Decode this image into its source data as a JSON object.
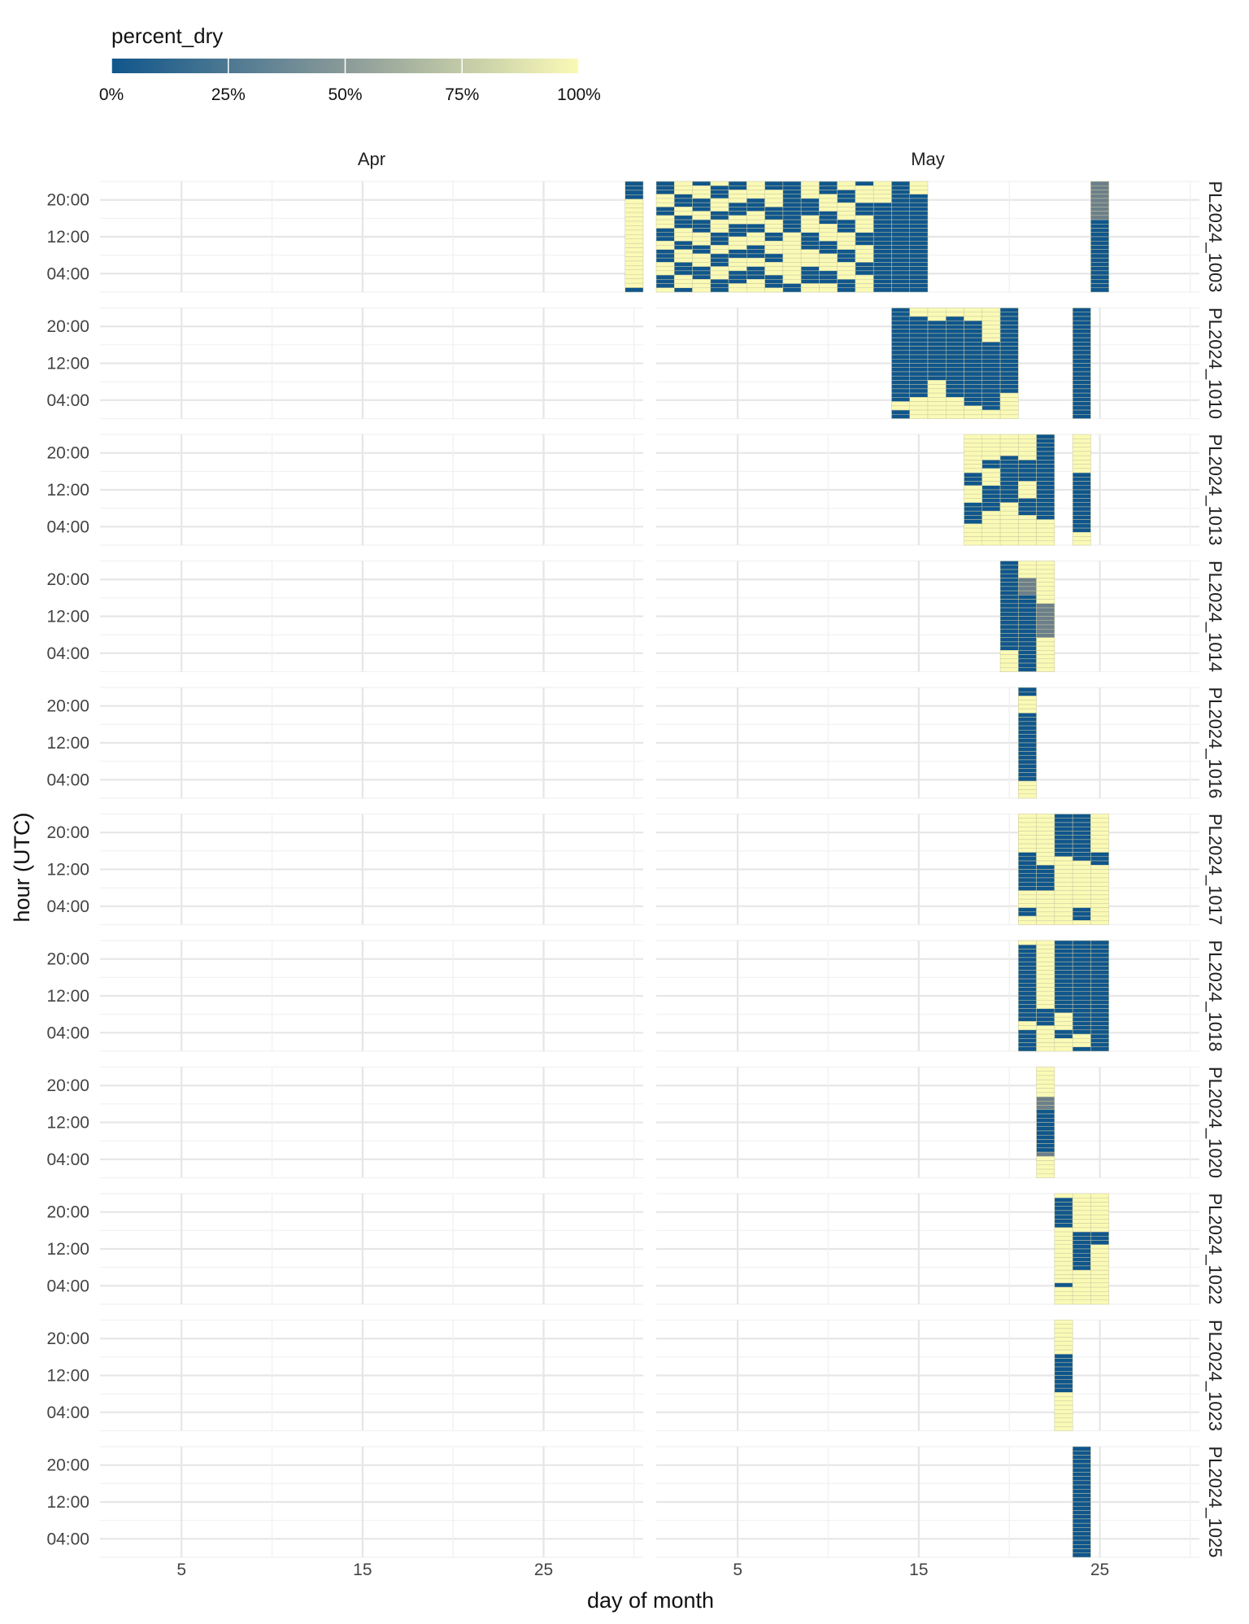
{
  "chart_data": {
    "type": "heatmap",
    "title": "",
    "xlabel": "day of month",
    "ylabel": "hour (UTC)",
    "legend": {
      "title": "percent_dry",
      "position": "top-left",
      "ticks": [
        "0%",
        "25%",
        "50%",
        "75%",
        "100%"
      ],
      "tick_values": [
        0,
        0.25,
        0.5,
        0.75,
        1
      ],
      "low_color": "#10568c",
      "mid_color": "#8a9a98",
      "high_color": "#fafab6"
    },
    "grid": true,
    "column_facets": [
      "Apr",
      "May"
    ],
    "x_ticks": [
      5,
      15,
      25
    ],
    "x_range": [
      0.5,
      30.5
    ],
    "y_ticks": [
      "20:00",
      "12:00",
      "04:00"
    ],
    "y_tick_hours": [
      20,
      12,
      4
    ],
    "y_range": [
      0,
      24
    ],
    "row_facets": [
      "PL2024_1003",
      "PL2024_1010",
      "PL2024_1013",
      "PL2024_1014",
      "PL2024_1016",
      "PL2024_1017",
      "PL2024_1018",
      "PL2024_1020",
      "PL2024_1022",
      "PL2024_1023",
      "PL2024_1025"
    ],
    "days": [
      {
        "facet": "PL2024_1003",
        "month": "Apr",
        "day": 30,
        "pattern": "1111000000000000000000001"
      },
      {
        "facet": "PL2024_1003",
        "month": "May",
        "day": 1,
        "pattern": "DDDHHHDDHHHDDDHHDDDHHHDDDH"
      },
      {
        "facet": "PL2024_1003",
        "month": "May",
        "day": 2,
        "pattern": "HHHDDDHHDDDHHHDDHHHDDDHHHD"
      },
      {
        "facet": "PL2024_1003",
        "month": "May",
        "day": 3,
        "pattern": "DHHHDDDHHDDDHHHDDHHHDDDHHH"
      },
      {
        "facet": "PL2024_1003",
        "month": "May",
        "day": 4,
        "pattern": "HDDDHHHDDHHHDDDHHDDDHHHDDD"
      },
      {
        "facet": "PL2024_1003",
        "month": "May",
        "day": 5,
        "pattern": "DDHHHDDDHHDDDHHHDDHHHDDDHH"
      },
      {
        "facet": "PL2024_1003",
        "month": "May",
        "day": 6,
        "pattern": "HHHHDDDHHHDDHHHDDDHHDDDHHH"
      },
      {
        "facet": "PL2024_1003",
        "month": "May",
        "day": 7,
        "pattern": "DDHHHHDDDHHHDDHHHDDHHHDDDH"
      },
      {
        "facet": "PL2024_1003",
        "month": "May",
        "day": 8,
        "pattern": "DDDDDDDDDDDDHHHHHHHHHHHHDD"
      },
      {
        "facet": "PL2024_1003",
        "month": "May",
        "day": 9,
        "pattern": "HHHHDDDDHHHHDDDDHHHHDDDDHH"
      },
      {
        "facet": "PL2024_1003",
        "month": "May",
        "day": 10,
        "pattern": "DDDHHHHDDDHHHHDDDHHHHDDDHH"
      },
      {
        "facet": "PL2024_1003",
        "month": "May",
        "day": 11,
        "pattern": "HHDDDHHHHDDDHHHHDDDHHHHDDD"
      },
      {
        "facet": "PL2024_1003",
        "month": "May",
        "day": 12,
        "pattern": "DHHHHDDDHHHHDDDHHHHDDDHHHH"
      },
      {
        "facet": "PL2024_1003",
        "month": "May",
        "day": 13,
        "pattern": "HHHHHDDDDDDDDDDDDDDDDDDDDD"
      },
      {
        "facet": "PL2024_1003",
        "month": "May",
        "day": 14,
        "pattern": "DDDDDDDDDDDDDDDDDDDDDDDDDD"
      },
      {
        "facet": "PL2024_1003",
        "month": "May",
        "day": 15,
        "pattern": "HHHDDDDDDDDDDDDDDDDDDDDDDD"
      },
      {
        "facet": "PL2024_1003",
        "month": "May",
        "day": 25,
        "pattern": "MMMMMMMMMDDDDDDDDDDDDDDDDD"
      },
      {
        "facet": "PL2024_1010",
        "month": "May",
        "day": 14,
        "pattern": "DDDDDDDDDDDDDDDDDDDDDDHHDD"
      },
      {
        "facet": "PL2024_1010",
        "month": "May",
        "day": 15,
        "pattern": "HHDDDDDDDDDDDDDDDDDDDHHHHH"
      },
      {
        "facet": "PL2024_1010",
        "month": "May",
        "day": 16,
        "pattern": "HHHDDDDDDDDDDDDDDHHHHHHHHH"
      },
      {
        "facet": "PL2024_1010",
        "month": "May",
        "day": 17,
        "pattern": "HHDDDDDDDDDDDDDDDDDDDHHHHH"
      },
      {
        "facet": "PL2024_1010",
        "month": "May",
        "day": 18,
        "pattern": "HHHDDDDDDDDDDDDDDDDDDDDHHH"
      },
      {
        "facet": "PL2024_1010",
        "month": "May",
        "day": 19,
        "pattern": "HHHHHHHHDDDDDDDDDDDDDDDDHH"
      },
      {
        "facet": "PL2024_1010",
        "month": "May",
        "day": 20,
        "pattern": "DDDDDDDDDDDDDDDDDDDDHHHHHH"
      },
      {
        "facet": "PL2024_1010",
        "month": "May",
        "day": 24,
        "pattern": "DDDDDDDDDDDDDDDDDDDDDDDDDD"
      },
      {
        "facet": "PL2024_1013",
        "month": "May",
        "day": 18,
        "pattern": "HHHHHHHHHDDDHHHHDDDDDHHHHH"
      },
      {
        "facet": "PL2024_1013",
        "month": "May",
        "day": 19,
        "pattern": "HHHHHHDDHHHHDDDDDDHHHHHHHH"
      },
      {
        "facet": "PL2024_1013",
        "month": "May",
        "day": 20,
        "pattern": "HHHHHDDDDDDDDDDDHHHHHHHHHH"
      },
      {
        "facet": "PL2024_1013",
        "month": "May",
        "day": 21,
        "pattern": "HHHHHHDDDDDHHHHDDDDHHHHHHH"
      },
      {
        "facet": "PL2024_1013",
        "month": "May",
        "day": 22,
        "pattern": "DDDDDDDDDDDDDDDDDDDDHHHHHH"
      },
      {
        "facet": "PL2024_1013",
        "month": "May",
        "day": 24,
        "pattern": "HHHHHHHHHDDDDDDDDDDDDDDHHH"
      },
      {
        "facet": "PL2024_1014",
        "month": "May",
        "day": 20,
        "pattern": "DDDDDDDDDDDDDDDDDDDDDHHHHH"
      },
      {
        "facet": "PL2024_1014",
        "month": "May",
        "day": 21,
        "pattern": "HHHHMMMMDDDDDDDDDDDDDDDDDD"
      },
      {
        "facet": "PL2024_1014",
        "month": "May",
        "day": 22,
        "pattern": "HHHHHHHHHHMMMMMMMMHHHHHHHH"
      },
      {
        "facet": "PL2024_1016",
        "month": "May",
        "day": 21,
        "pattern": "DDHHHHDDDDDDDDDDDDDDDDHHHH"
      },
      {
        "facet": "PL2024_1017",
        "month": "May",
        "day": 21,
        "pattern": "HHHHHHHHHDDDDDDDDDHHHHDDHH"
      },
      {
        "facet": "PL2024_1017",
        "month": "May",
        "day": 22,
        "pattern": "HHHHHHHHHHHHDDDDDDHHHHHHHH"
      },
      {
        "facet": "PL2024_1017",
        "month": "May",
        "day": 23,
        "pattern": "DDDDDDDDDDHHHHHHHHHHHHHHHH"
      },
      {
        "facet": "PL2024_1017",
        "month": "May",
        "day": 24,
        "pattern": "DDDDDDDDDDDHHHHHHHHHHHDDDH"
      },
      {
        "facet": "PL2024_1017",
        "month": "May",
        "day": 25,
        "pattern": "HHHHHHHHHDDDHHHHHHHHHHHHHH"
      },
      {
        "facet": "PL2024_1018",
        "month": "May",
        "day": 21,
        "pattern": "HDDDDDDDDDDDDDDDDDDHHDDDDD"
      },
      {
        "facet": "PL2024_1018",
        "month": "May",
        "day": 22,
        "pattern": "HHHHHHHHHHHHHHHHDDDDHHHHHH"
      },
      {
        "facet": "PL2024_1018",
        "month": "May",
        "day": 23,
        "pattern": "DDDDDDDDDDDDDDDDDHHHHDDHHH"
      },
      {
        "facet": "PL2024_1018",
        "month": "May",
        "day": 24,
        "pattern": "DDDDDDDDDDDDDDDDDDDDDDHHHD"
      },
      {
        "facet": "PL2024_1018",
        "month": "May",
        "day": 25,
        "pattern": "DDDDDDDDDDDDDDDDDDDDDDDDDD"
      },
      {
        "facet": "PL2024_1020",
        "month": "May",
        "day": 22,
        "pattern": "HHHHHHHMMMDDDDDDDDDDMHHHHH"
      },
      {
        "facet": "PL2024_1022",
        "month": "May",
        "day": 23,
        "pattern": "HDDDDDDDHHHHHHHHHHHHHDHHHH"
      },
      {
        "facet": "PL2024_1022",
        "month": "May",
        "day": 24,
        "pattern": "HHHHHHHHHDDDDDDDDDHHHHHHHH"
      },
      {
        "facet": "PL2024_1022",
        "month": "May",
        "day": 25,
        "pattern": "HHHHHHHHHDDDHHHHHHHHHHHHHH"
      },
      {
        "facet": "PL2024_1023",
        "month": "May",
        "day": 23,
        "pattern": "HHHHHHHHDDDDDDDDDHHHHHHHHH"
      },
      {
        "facet": "PL2024_1025",
        "month": "May",
        "day": 24,
        "pattern": "DDDDDDDDDDDDDDDDDDDDDDDDDD"
      }
    ]
  }
}
